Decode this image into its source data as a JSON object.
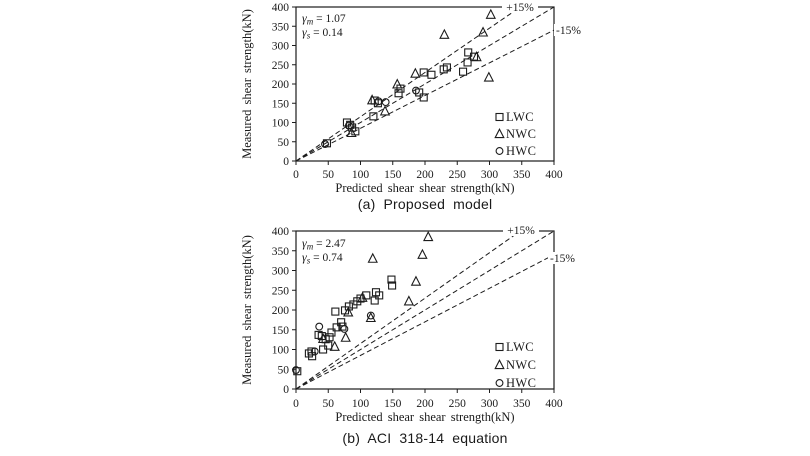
{
  "figure": {
    "background": "#ffffff",
    "ink": "#1c1c1c",
    "captions": {
      "a": "(a) Proposed model",
      "b": "(b) ACI 318-14 equation"
    }
  },
  "chart_data": [
    {
      "id": "a",
      "type": "scatter",
      "caption": "(a) Proposed model",
      "xlabel": "Predicted shear shear strength(kN)",
      "ylabel": "Measured shear strength(kN)",
      "xlim": [
        0,
        400
      ],
      "ylim": [
        0,
        400
      ],
      "xticks": [
        0,
        50,
        100,
        150,
        200,
        250,
        300,
        350,
        400
      ],
      "yticks": [
        0,
        50,
        100,
        150,
        200,
        250,
        300,
        350,
        400
      ],
      "grid": false,
      "legend_position": "inside lower right",
      "annotation_lines": [
        {
          "symbol": "γ",
          "subscript": "m",
          "value": "= 1.07"
        },
        {
          "symbol": "γ",
          "subscript": "s",
          "value": "= 0.14"
        }
      ],
      "reference_lines": [
        {
          "label": "+15%",
          "slope": 1.15,
          "style": "dashed"
        },
        {
          "label": "",
          "slope": 1.0,
          "style": "dashed"
        },
        {
          "label": "-15%",
          "slope": 0.85,
          "style": "dashed"
        }
      ],
      "series": [
        {
          "name": "LWC",
          "marker": "square",
          "points": [
            [
              48,
              46
            ],
            [
              79,
              100
            ],
            [
              84,
              94
            ],
            [
              87,
              87
            ],
            [
              92,
              77
            ],
            [
              120,
              116
            ],
            [
              122,
              157
            ],
            [
              127,
              150
            ],
            [
              159,
              176
            ],
            [
              162,
              188
            ],
            [
              191,
              178
            ],
            [
              198,
              165
            ],
            [
              198,
              230
            ],
            [
              210,
              224
            ],
            [
              229,
              238
            ],
            [
              234,
              243
            ],
            [
              259,
              232
            ],
            [
              266,
              256
            ],
            [
              267,
              282
            ],
            [
              276,
              271
            ]
          ]
        },
        {
          "name": "NWC",
          "marker": "triangle",
          "points": [
            [
              86,
              73
            ],
            [
              118,
              158
            ],
            [
              138,
              129
            ],
            [
              157,
              199
            ],
            [
              185,
              227
            ],
            [
              230,
              328
            ],
            [
              280,
              270
            ],
            [
              290,
              334
            ],
            [
              299,
              217
            ],
            [
              302,
              380
            ]
          ]
        },
        {
          "name": "HWC",
          "marker": "circle",
          "points": [
            [
              45,
              44
            ],
            [
              82,
              92
            ],
            [
              128,
              155
            ],
            [
              139,
              153
            ],
            [
              186,
              183
            ]
          ]
        }
      ]
    },
    {
      "id": "b",
      "type": "scatter",
      "caption": "(b) ACI 318-14 equation",
      "xlabel": "Predicted shear shear strength(kN)",
      "ylabel": "Measured shear strength(kN)",
      "xlim": [
        0,
        400
      ],
      "ylim": [
        0,
        400
      ],
      "xticks": [
        0,
        50,
        100,
        150,
        200,
        250,
        300,
        350,
        400
      ],
      "yticks": [
        0,
        50,
        100,
        150,
        200,
        250,
        300,
        350,
        400
      ],
      "grid": false,
      "legend_position": "inside lower right",
      "annotation_lines": [
        {
          "symbol": "γ",
          "subscript": "m",
          "value": "= 2.47"
        },
        {
          "symbol": "γ",
          "subscript": "s",
          "value": "= 0.74"
        }
      ],
      "reference_lines": [
        {
          "label": "+15%",
          "slope": 1.15,
          "style": "dashed"
        },
        {
          "label": "",
          "slope": 1.0,
          "style": "dashed"
        },
        {
          "label": "-15%",
          "slope": 0.85,
          "style": "dashed"
        }
      ],
      "series": [
        {
          "name": "LWC",
          "marker": "square",
          "points": [
            [
              2,
              45
            ],
            [
              20,
              90
            ],
            [
              24,
              95
            ],
            [
              25,
              83
            ],
            [
              35,
              137
            ],
            [
              40,
              134
            ],
            [
              42,
              100
            ],
            [
              46,
              126
            ],
            [
              50,
              110
            ],
            [
              52,
              131
            ],
            [
              55,
              143
            ],
            [
              61,
              196
            ],
            [
              63,
              156
            ],
            [
              70,
              169
            ],
            [
              72,
              158
            ],
            [
              76,
              199
            ],
            [
              82,
              209
            ],
            [
              89,
              214
            ],
            [
              95,
              222
            ],
            [
              100,
              229
            ],
            [
              109,
              237
            ],
            [
              122,
              224
            ],
            [
              124,
              245
            ],
            [
              129,
              237
            ],
            [
              148,
              277
            ],
            [
              149,
              262
            ]
          ]
        },
        {
          "name": "NWC",
          "marker": "triangle",
          "points": [
            [
              42,
              127
            ],
            [
              60,
              107
            ],
            [
              77,
              130
            ],
            [
              81,
              194
            ],
            [
              103,
              231
            ],
            [
              116,
              180
            ],
            [
              119,
              330
            ],
            [
              175,
              222
            ],
            [
              186,
              272
            ],
            [
              196,
              340
            ],
            [
              205,
              385
            ]
          ]
        },
        {
          "name": "HWC",
          "marker": "circle",
          "points": [
            [
              0,
              48
            ],
            [
              29,
              95
            ],
            [
              36,
              158
            ],
            [
              75,
              152
            ],
            [
              116,
              186
            ]
          ]
        }
      ]
    }
  ]
}
